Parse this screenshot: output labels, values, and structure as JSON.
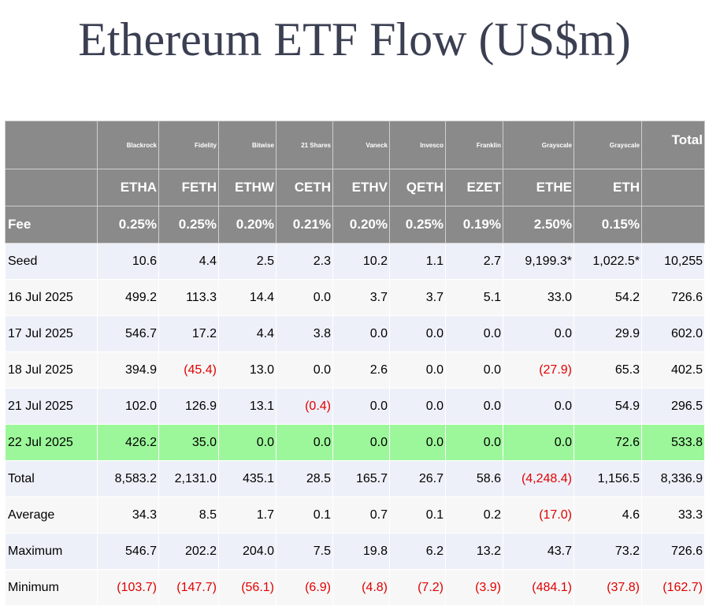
{
  "title": "Ethereum ETF Flow (US$m)",
  "issuers": [
    "Blackrock",
    "Fidelity",
    "Bitwise",
    "21 Shares",
    "Vaneck",
    "Invesco",
    "Franklin",
    "Grayscale",
    "Grayscale"
  ],
  "total_header": "Total",
  "tickers": [
    "ETHA",
    "FETH",
    "ETHW",
    "CETH",
    "ETHV",
    "QETH",
    "EZET",
    "ETHE",
    "ETH"
  ],
  "fee_label": "Fee",
  "fees": [
    "0.25%",
    "0.25%",
    "0.20%",
    "0.21%",
    "0.20%",
    "0.25%",
    "0.19%",
    "2.50%",
    "0.15%"
  ],
  "rows": [
    {
      "label": "Seed",
      "values": [
        "10.6",
        "4.4",
        "2.5",
        "2.3",
        "10.2",
        "1.1",
        "2.7",
        "9,199.3*",
        "1,022.5*",
        "10,255"
      ]
    },
    {
      "label": "16 Jul 2025",
      "values": [
        "499.2",
        "113.3",
        "14.4",
        "0.0",
        "3.7",
        "3.7",
        "5.1",
        "33.0",
        "54.2",
        "726.6"
      ]
    },
    {
      "label": "17 Jul 2025",
      "values": [
        "546.7",
        "17.2",
        "4.4",
        "3.8",
        "0.0",
        "0.0",
        "0.0",
        "0.0",
        "29.9",
        "602.0"
      ]
    },
    {
      "label": "18 Jul 2025",
      "values": [
        "394.9",
        "(45.4)",
        "13.0",
        "0.0",
        "2.6",
        "0.0",
        "0.0",
        "(27.9)",
        "65.3",
        "402.5"
      ]
    },
    {
      "label": "21 Jul 2025",
      "values": [
        "102.0",
        "126.9",
        "13.1",
        "(0.4)",
        "0.0",
        "0.0",
        "0.0",
        "0.0",
        "54.9",
        "296.5"
      ]
    },
    {
      "label": "22 Jul 2025",
      "values": [
        "426.2",
        "35.0",
        "0.0",
        "0.0",
        "0.0",
        "0.0",
        "0.0",
        "0.0",
        "72.6",
        "533.8"
      ],
      "highlight": true
    },
    {
      "label": "Total",
      "values": [
        "8,583.2",
        "2,131.0",
        "435.1",
        "28.5",
        "165.7",
        "26.7",
        "58.6",
        "(4,248.4)",
        "1,156.5",
        "8,336.9"
      ]
    },
    {
      "label": "Average",
      "values": [
        "34.3",
        "8.5",
        "1.7",
        "0.1",
        "0.7",
        "0.1",
        "0.2",
        "(17.0)",
        "4.6",
        "33.3"
      ]
    },
    {
      "label": "Maximum",
      "values": [
        "546.7",
        "202.2",
        "204.0",
        "7.5",
        "19.8",
        "6.2",
        "13.2",
        "43.7",
        "73.2",
        "726.6"
      ]
    },
    {
      "label": "Minimum",
      "values": [
        "(103.7)",
        "(147.7)",
        "(56.1)",
        "(6.9)",
        "(4.8)",
        "(7.2)",
        "(3.9)",
        "(484.1)",
        "(37.8)",
        "(162.7)"
      ]
    }
  ],
  "colors": {
    "header_bg": "#8a8a8a",
    "row_odd": "#eef0f9",
    "row_even": "#f7f7f7",
    "highlight": "#9cf79a",
    "negative": "#e00000",
    "title": "#3b3f52"
  }
}
